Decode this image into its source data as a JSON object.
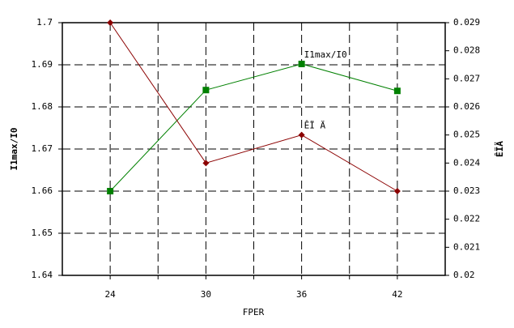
{
  "chart_data": {
    "type": "line",
    "x_label": "FPER",
    "y_label": "I1max/I0",
    "y2_label": "ÊÏÄ",
    "x": [
      24,
      30,
      36,
      42
    ],
    "xlim": [
      21,
      45
    ],
    "xticks": [
      24,
      30,
      36,
      42
    ],
    "xminorticks": [
      27,
      33,
      39
    ],
    "ylim": [
      1.64,
      1.7
    ],
    "yticks": [
      1.64,
      1.65,
      1.66,
      1.67,
      1.68,
      1.69,
      1.7
    ],
    "y2lim": [
      0.02,
      0.029
    ],
    "y2ticks": [
      0.02,
      0.021,
      0.022,
      0.023,
      0.024,
      0.025,
      0.026,
      0.027,
      0.028,
      0.029
    ],
    "grid": true,
    "series": [
      {
        "name": "I1max/I0",
        "color": "#008000",
        "marker": "square",
        "values": [
          1.66,
          1.684,
          1.6902,
          1.6838
        ]
      },
      {
        "name": "ÊÏ Ä",
        "color": "#8b0000",
        "marker": "diamond",
        "axis": "y2",
        "values": [
          0.029,
          0.024,
          0.025,
          0.023
        ]
      }
    ]
  }
}
